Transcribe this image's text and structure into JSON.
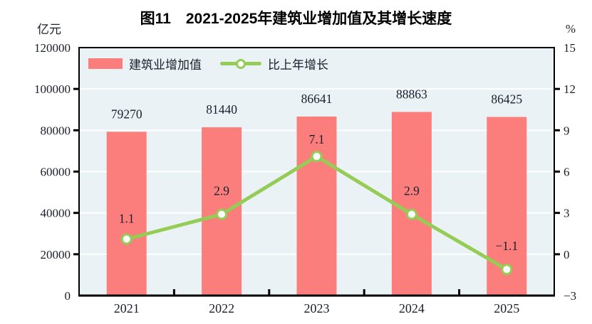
{
  "chart_data": {
    "type": "bar+line",
    "title": "图11　2021-2025年建筑业增加值及其增长速度",
    "categories": [
      "2021",
      "2022",
      "2023",
      "2024",
      "2025"
    ],
    "series": [
      {
        "name": "建筑业增加值",
        "type": "bar",
        "axis": "left",
        "values": [
          79270,
          81440,
          86641,
          88863,
          86425
        ],
        "labels": [
          "79270",
          "81440",
          "86641",
          "88863",
          "86425"
        ],
        "color": "#fc7e7c"
      },
      {
        "name": "比上年增长",
        "type": "line",
        "axis": "right",
        "values": [
          1.1,
          2.9,
          7.1,
          2.9,
          -1.1
        ],
        "labels": [
          "1.1",
          "2.9",
          "7.1",
          "2.9",
          "−1.1"
        ],
        "color": "#94cc55"
      }
    ],
    "left_axis": {
      "unit": "亿元",
      "min": 0,
      "max": 120000,
      "step": 20000,
      "tick_labels": [
        "0",
        "20000",
        "40000",
        "60000",
        "80000",
        "100000",
        "120000"
      ]
    },
    "right_axis": {
      "unit": "%",
      "min": -3,
      "max": 15,
      "step": 3,
      "tick_labels": [
        "−3",
        "0",
        "3",
        "6",
        "9",
        "12",
        "15"
      ]
    },
    "grid": true,
    "legend_position": "top-left-inside",
    "colors": {
      "plot_bg": "#eaf2f6",
      "grid": "#ffffff",
      "axis": "#000000",
      "text": "#1a1f2b",
      "marker_fill": "#ffffff"
    }
  }
}
